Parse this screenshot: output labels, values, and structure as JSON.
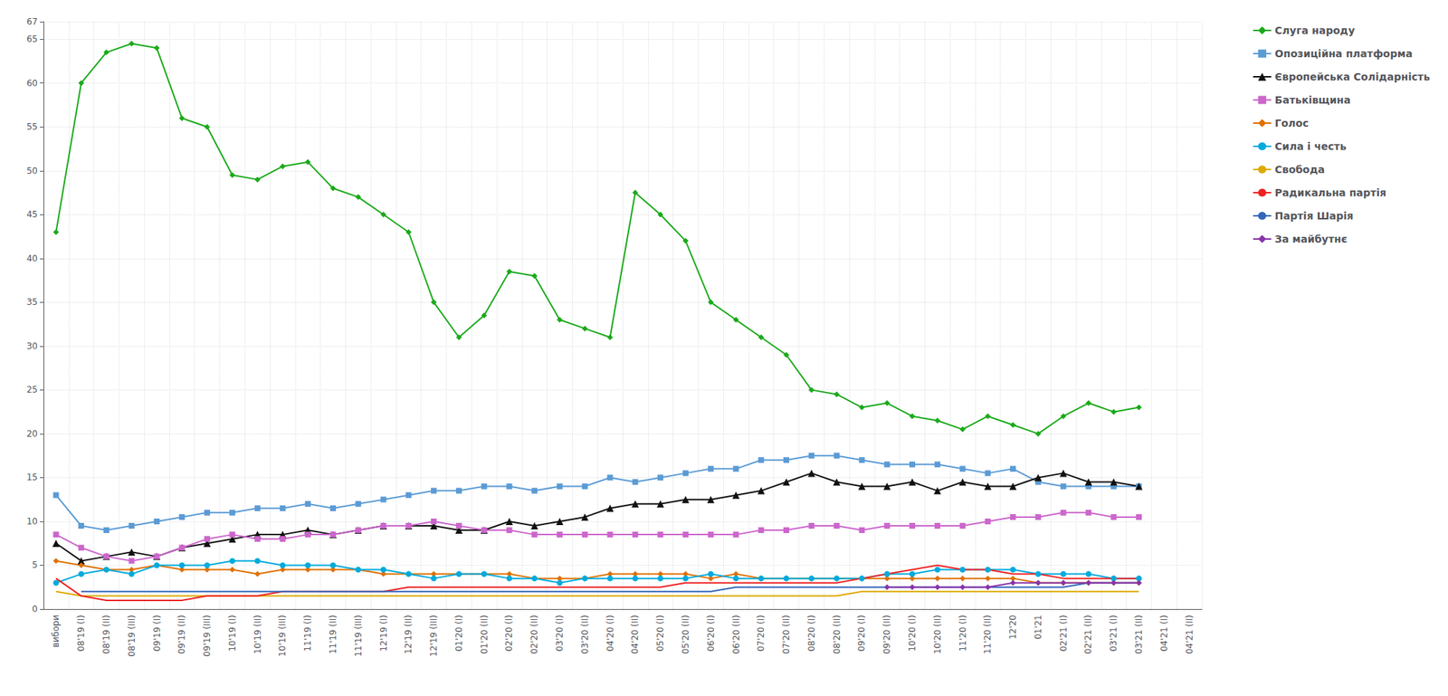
{
  "chart_data": {
    "type": "line",
    "categories": [
      "вибори",
      "08'19 (I)",
      "08'19 (II)",
      "08'19 (III)",
      "09'19 (I)",
      "09'19 (II)",
      "09'19 (III)",
      "10'19 (I)",
      "10'19 (II)",
      "10'19 (III)",
      "11'19 (I)",
      "11'19 (II)",
      "11'19 (III)",
      "12'19 (I)",
      "12'19 (II)",
      "12'19 (III)",
      "01'20 (I)",
      "01'20 (II)",
      "02'20 (I)",
      "02'20 (II)",
      "03'20 (I)",
      "03'20 (II)",
      "04'20 (I)",
      "04'20 (II)",
      "05'20 (I)",
      "05'20 (II)",
      "06'20 (I)",
      "06'20 (II)",
      "07'20 (I)",
      "07'20 (II)",
      "08'20 (I)",
      "08'20 (II)",
      "09'20 (I)",
      "09'20 (II)",
      "10'20 (I)",
      "10'20 (II)",
      "11'20 (I)",
      "11'20 (II)",
      "12'20",
      "01'21",
      "02'21 (I)",
      "02'21 (II)",
      "03'21 (I)",
      "03'21 (II)",
      "04'21 (I)",
      "04'21 (II)"
    ],
    "series": [
      {
        "name": "Слуга народу",
        "color": "#1aaa1a",
        "marker": "diamond",
        "values": [
          43.0,
          60.0,
          63.5,
          64.5,
          64.0,
          56.0,
          55.0,
          49.5,
          49.0,
          50.5,
          51.0,
          48.0,
          47.0,
          45.0,
          43.0,
          35.0,
          31.0,
          33.5,
          38.5,
          38.0,
          33.0,
          32.0,
          31.0,
          47.5,
          45.0,
          42.0,
          35.0,
          33.0,
          31.0,
          29.0,
          25.0,
          24.5,
          23.0,
          23.5,
          22.0,
          21.5,
          20.5,
          22.0,
          21.0,
          20.0,
          22.0,
          23.5,
          22.5,
          23.0,
          null,
          null
        ]
      },
      {
        "name": "Опозиційна платформа",
        "color": "#5b9bd5",
        "marker": "square",
        "values": [
          13.0,
          9.5,
          9.0,
          9.5,
          10.0,
          10.5,
          11.0,
          11.0,
          11.5,
          11.5,
          12.0,
          11.5,
          12.0,
          12.5,
          13.0,
          13.5,
          13.5,
          14.0,
          14.0,
          13.5,
          14.0,
          14.0,
          15.0,
          14.5,
          15.0,
          15.5,
          16.0,
          16.0,
          17.0,
          17.0,
          17.5,
          17.5,
          17.0,
          16.5,
          16.5,
          16.5,
          16.0,
          15.5,
          16.0,
          14.5,
          14.0,
          14.0,
          14.0,
          14.0,
          null,
          null
        ]
      },
      {
        "name": "Європейська Солідарність",
        "color": "#111111",
        "marker": "triangle",
        "values": [
          7.5,
          5.5,
          6.0,
          6.5,
          6.0,
          7.0,
          7.5,
          8.0,
          8.5,
          8.5,
          9.0,
          8.5,
          9.0,
          9.5,
          9.5,
          9.5,
          9.0,
          9.0,
          10.0,
          9.5,
          10.0,
          10.5,
          11.5,
          12.0,
          12.0,
          12.5,
          12.5,
          13.0,
          13.5,
          14.5,
          15.5,
          14.5,
          14.0,
          14.0,
          14.5,
          13.5,
          14.5,
          14.0,
          14.0,
          15.0,
          15.5,
          14.5,
          14.5,
          14.0,
          null,
          null
        ]
      },
      {
        "name": "Батьківщина",
        "color": "#cc66cc",
        "marker": "square",
        "values": [
          8.5,
          7.0,
          6.0,
          5.5,
          6.0,
          7.0,
          8.0,
          8.5,
          8.0,
          8.0,
          8.5,
          8.5,
          9.0,
          9.5,
          9.5,
          10.0,
          9.5,
          9.0,
          9.0,
          8.5,
          8.5,
          8.5,
          8.5,
          8.5,
          8.5,
          8.5,
          8.5,
          8.5,
          9.0,
          9.0,
          9.5,
          9.5,
          9.0,
          9.5,
          9.5,
          9.5,
          9.5,
          10.0,
          10.5,
          10.5,
          11.0,
          11.0,
          10.5,
          10.5,
          null,
          null
        ]
      },
      {
        "name": "Голос",
        "color": "#e07000",
        "marker": "diamond",
        "values": [
          5.5,
          5.0,
          4.5,
          4.5,
          5.0,
          4.5,
          4.5,
          4.5,
          4.0,
          4.5,
          4.5,
          4.5,
          4.5,
          4.0,
          4.0,
          4.0,
          4.0,
          4.0,
          4.0,
          3.5,
          3.5,
          3.5,
          4.0,
          4.0,
          4.0,
          4.0,
          3.5,
          4.0,
          3.5,
          3.5,
          3.5,
          3.5,
          3.5,
          3.5,
          3.5,
          3.5,
          3.5,
          3.5,
          3.5,
          3.0,
          3.0,
          3.0,
          3.0,
          3.0,
          null,
          null
        ]
      },
      {
        "name": "Сила і честь",
        "color": "#00aadd",
        "marker": "circle",
        "values": [
          3.0,
          4.0,
          4.5,
          4.0,
          5.0,
          5.0,
          5.0,
          5.5,
          5.5,
          5.0,
          5.0,
          5.0,
          4.5,
          4.5,
          4.0,
          3.5,
          4.0,
          4.0,
          3.5,
          3.5,
          3.0,
          3.5,
          3.5,
          3.5,
          3.5,
          3.5,
          4.0,
          3.5,
          3.5,
          3.5,
          3.5,
          3.5,
          3.5,
          4.0,
          4.0,
          4.5,
          4.5,
          4.5,
          4.5,
          4.0,
          4.0,
          4.0,
          3.5,
          3.5,
          null,
          null
        ]
      },
      {
        "name": "Свобода",
        "color": "#ddaa00",
        "marker": "none",
        "values": [
          2.0,
          1.5,
          1.5,
          1.5,
          1.5,
          1.5,
          1.5,
          1.5,
          1.5,
          1.5,
          1.5,
          1.5,
          1.5,
          1.5,
          1.5,
          1.5,
          1.5,
          1.5,
          1.5,
          1.5,
          1.5,
          1.5,
          1.5,
          1.5,
          1.5,
          1.5,
          1.5,
          1.5,
          1.5,
          1.5,
          1.5,
          1.5,
          2.0,
          2.0,
          2.0,
          2.0,
          2.0,
          2.0,
          2.0,
          2.0,
          2.0,
          2.0,
          2.0,
          2.0,
          null,
          null
        ]
      },
      {
        "name": "Радикальна партія",
        "color": "#ee2222",
        "marker": "none",
        "values": [
          3.5,
          1.5,
          1.0,
          1.0,
          1.0,
          1.0,
          1.5,
          1.5,
          1.5,
          2.0,
          2.0,
          2.0,
          2.0,
          2.0,
          2.5,
          2.5,
          2.5,
          2.5,
          2.5,
          2.5,
          2.5,
          2.5,
          2.5,
          2.5,
          2.5,
          3.0,
          3.0,
          3.0,
          3.0,
          3.0,
          3.0,
          3.0,
          3.5,
          4.0,
          4.5,
          5.0,
          4.5,
          4.5,
          4.0,
          4.0,
          3.5,
          3.5,
          3.5,
          3.5,
          null,
          null
        ]
      },
      {
        "name": "Партія Шарія",
        "color": "#3366bb",
        "marker": "none",
        "values": [
          null,
          2.0,
          2.0,
          2.0,
          2.0,
          2.0,
          2.0,
          2.0,
          2.0,
          2.0,
          2.0,
          2.0,
          2.0,
          2.0,
          2.0,
          2.0,
          2.0,
          2.0,
          2.0,
          2.0,
          2.0,
          2.0,
          2.0,
          2.0,
          2.0,
          2.0,
          2.0,
          2.5,
          2.5,
          2.5,
          2.5,
          2.5,
          2.5,
          2.5,
          2.5,
          2.5,
          2.5,
          2.5,
          2.5,
          2.5,
          2.5,
          3.0,
          3.0,
          3.0,
          null,
          null
        ]
      },
      {
        "name": "За майбутнє",
        "color": "#8833aa",
        "marker": "diamond",
        "values": [
          null,
          null,
          null,
          null,
          null,
          null,
          null,
          null,
          null,
          null,
          null,
          null,
          null,
          null,
          null,
          null,
          null,
          null,
          null,
          null,
          null,
          null,
          null,
          null,
          null,
          null,
          null,
          null,
          null,
          null,
          null,
          null,
          null,
          2.5,
          2.5,
          2.5,
          2.5,
          2.5,
          3.0,
          3.0,
          3.0,
          3.0,
          3.0,
          3.0,
          null,
          null
        ]
      }
    ],
    "ylim": [
      0,
      67
    ],
    "yticks": [
      0,
      5,
      10,
      15,
      20,
      25,
      30,
      35,
      40,
      45,
      50,
      55,
      60,
      65
    ],
    "grid": true,
    "legend": "right"
  }
}
